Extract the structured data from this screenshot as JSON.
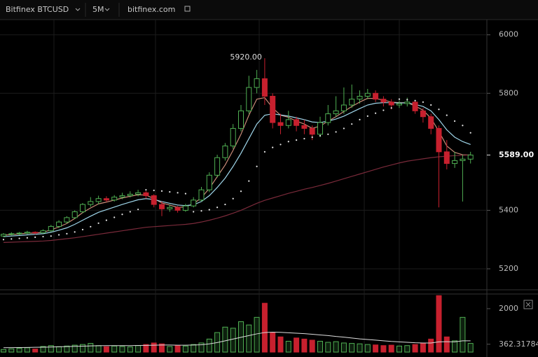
{
  "chart_data": {
    "type": "candlestick",
    "toolbar": {
      "symbol": "Bitfinex BTCUSD",
      "interval": "5M",
      "site": "bitfinex.com"
    },
    "annotation": {
      "value": 5920,
      "label": "5920.00"
    },
    "last_price": {
      "value": 5589,
      "label": "5589.00"
    },
    "ylim": [
      5133,
      6052
    ],
    "yticks": [
      5200,
      5400,
      5800,
      6000
    ],
    "up_color": "#4fae52",
    "down_color": "#c7202e",
    "candles": [
      [
        5312,
        5322,
        5308,
        5318
      ],
      [
        5318,
        5325,
        5314,
        5320
      ],
      [
        5320,
        5326,
        5315,
        5322
      ],
      [
        5322,
        5330,
        5318,
        5325
      ],
      [
        5325,
        5328,
        5318,
        5323
      ],
      [
        5323,
        5335,
        5320,
        5330
      ],
      [
        5330,
        5350,
        5326,
        5345
      ],
      [
        5345,
        5366,
        5340,
        5360
      ],
      [
        5360,
        5380,
        5355,
        5375
      ],
      [
        5375,
        5400,
        5370,
        5395
      ],
      [
        5395,
        5425,
        5390,
        5420
      ],
      [
        5420,
        5445,
        5412,
        5430
      ],
      [
        5430,
        5450,
        5420,
        5440
      ],
      [
        5440,
        5448,
        5428,
        5435
      ],
      [
        5435,
        5452,
        5430,
        5445
      ],
      [
        5445,
        5460,
        5438,
        5450
      ],
      [
        5450,
        5465,
        5444,
        5455
      ],
      [
        5455,
        5470,
        5448,
        5460
      ],
      [
        5460,
        5466,
        5440,
        5450
      ],
      [
        5450,
        5455,
        5410,
        5420
      ],
      [
        5420,
        5430,
        5380,
        5405
      ],
      [
        5405,
        5420,
        5395,
        5410
      ],
      [
        5410,
        5415,
        5392,
        5400
      ],
      [
        5400,
        5422,
        5395,
        5415
      ],
      [
        5415,
        5445,
        5410,
        5435
      ],
      [
        5435,
        5480,
        5430,
        5470
      ],
      [
        5470,
        5530,
        5462,
        5520
      ],
      [
        5520,
        5590,
        5512,
        5580
      ],
      [
        5580,
        5630,
        5570,
        5620
      ],
      [
        5620,
        5695,
        5610,
        5680
      ],
      [
        5680,
        5760,
        5670,
        5740
      ],
      [
        5740,
        5860,
        5730,
        5820
      ],
      [
        5820,
        5880,
        5800,
        5850
      ],
      [
        5850,
        5920,
        5760,
        5790
      ],
      [
        5790,
        5800,
        5680,
        5700
      ],
      [
        5700,
        5730,
        5660,
        5690
      ],
      [
        5690,
        5740,
        5680,
        5710
      ],
      [
        5710,
        5720,
        5670,
        5690
      ],
      [
        5690,
        5710,
        5660,
        5680
      ],
      [
        5680,
        5690,
        5640,
        5660
      ],
      [
        5660,
        5720,
        5650,
        5700
      ],
      [
        5700,
        5760,
        5690,
        5730
      ],
      [
        5730,
        5790,
        5720,
        5740
      ],
      [
        5740,
        5820,
        5730,
        5760
      ],
      [
        5760,
        5830,
        5750,
        5780
      ],
      [
        5780,
        5810,
        5765,
        5790
      ],
      [
        5790,
        5815,
        5780,
        5800
      ],
      [
        5800,
        5810,
        5770,
        5780
      ],
      [
        5780,
        5790,
        5755,
        5770
      ],
      [
        5770,
        5780,
        5745,
        5760
      ],
      [
        5760,
        5775,
        5750,
        5765
      ],
      [
        5765,
        5785,
        5755,
        5770
      ],
      [
        5770,
        5775,
        5730,
        5740
      ],
      [
        5740,
        5750,
        5700,
        5720
      ],
      [
        5720,
        5730,
        5660,
        5680
      ],
      [
        5680,
        5690,
        5410,
        5600
      ],
      [
        5600,
        5640,
        5540,
        5560
      ],
      [
        5560,
        5600,
        5545,
        5570
      ],
      [
        5570,
        5590,
        5430,
        5575
      ],
      [
        5575,
        5600,
        5560,
        5589
      ]
    ],
    "lines": [
      {
        "color": "#c98b78",
        "values": [
          5315,
          5317,
          5319,
          5322,
          5322,
          5325,
          5333,
          5343,
          5355,
          5372,
          5392,
          5408,
          5422,
          5428,
          5435,
          5442,
          5448,
          5453,
          5452,
          5440,
          5425,
          5418,
          5410,
          5412,
          5422,
          5443,
          5475,
          5515,
          5555,
          5605,
          5660,
          5725,
          5780,
          5785,
          5750,
          5725,
          5718,
          5705,
          5695,
          5680,
          5688,
          5705,
          5720,
          5738,
          5755,
          5770,
          5783,
          5782,
          5777,
          5770,
          5768,
          5768,
          5757,
          5742,
          5715,
          5670,
          5620,
          5598,
          5590,
          5589
        ]
      },
      {
        "color": "#9fd6ea",
        "values": [
          5310,
          5312,
          5314,
          5316,
          5318,
          5320,
          5325,
          5332,
          5340,
          5352,
          5366,
          5380,
          5393,
          5402,
          5411,
          5420,
          5428,
          5436,
          5440,
          5437,
          5430,
          5424,
          5418,
          5416,
          5419,
          5430,
          5450,
          5478,
          5510,
          5550,
          5595,
          5645,
          5695,
          5725,
          5730,
          5726,
          5722,
          5716,
          5710,
          5702,
          5700,
          5705,
          5712,
          5722,
          5735,
          5748,
          5760,
          5766,
          5768,
          5768,
          5767,
          5767,
          5762,
          5755,
          5740,
          5710,
          5675,
          5650,
          5635,
          5625
        ]
      },
      {
        "color": "#7a2a3a",
        "values": [
          5290,
          5291,
          5292,
          5293,
          5294,
          5295,
          5297,
          5300,
          5303,
          5306,
          5310,
          5314,
          5318,
          5322,
          5326,
          5330,
          5334,
          5338,
          5342,
          5344,
          5346,
          5348,
          5350,
          5352,
          5355,
          5360,
          5366,
          5373,
          5381,
          5390,
          5400,
          5412,
          5424,
          5434,
          5442,
          5450,
          5458,
          5465,
          5472,
          5478,
          5485,
          5492,
          5500,
          5508,
          5516,
          5524,
          5532,
          5540,
          5548,
          5555,
          5562,
          5568,
          5572,
          5576,
          5580,
          5583,
          5585,
          5587,
          5588,
          5589
        ]
      }
    ],
    "sar": {
      "color": "#e8e8e8",
      "values": [
        5300,
        5302,
        5304,
        5306,
        5308,
        5310,
        5312,
        5316,
        5320,
        5326,
        5334,
        5344,
        5356,
        5366,
        5376,
        5386,
        5395,
        5403,
        5470,
        5468,
        5466,
        5463,
        5460,
        5457,
        5395,
        5398,
        5402,
        5410,
        5420,
        5440,
        5465,
        5500,
        5550,
        5600,
        5615,
        5625,
        5635,
        5640,
        5645,
        5650,
        5655,
        5660,
        5668,
        5680,
        5695,
        5710,
        5722,
        5732,
        5742,
        5750,
        5780,
        5778,
        5775,
        5770,
        5760,
        5745,
        5725,
        5705,
        5690,
        5665
      ]
    },
    "volume": {
      "ylim": [
        0,
        2610
      ],
      "yticks": [
        2000,
        362.31784
      ],
      "values": [
        120,
        150,
        180,
        200,
        140,
        260,
        300,
        250,
        280,
        320,
        350,
        400,
        300,
        250,
        280,
        260,
        240,
        300,
        350,
        420,
        380,
        260,
        300,
        280,
        350,
        420,
        600,
        900,
        1150,
        1100,
        1400,
        1250,
        1600,
        2250,
        900,
        700,
        500,
        650,
        600,
        550,
        500,
        450,
        480,
        420,
        400,
        380,
        350,
        330,
        300,
        320,
        280,
        300,
        350,
        420,
        600,
        2600,
        700,
        520,
        1600,
        400
      ],
      "ma_color": "#dddddd",
      "ma": [
        200,
        205,
        210,
        215,
        220,
        225,
        235,
        245,
        255,
        265,
        275,
        285,
        295,
        300,
        300,
        300,
        300,
        305,
        310,
        320,
        325,
        325,
        320,
        320,
        325,
        340,
        380,
        440,
        520,
        600,
        680,
        760,
        840,
        900,
        920,
        910,
        890,
        870,
        850,
        820,
        790,
        760,
        720,
        690,
        650,
        610,
        580,
        550,
        520,
        490,
        470,
        450,
        430,
        420,
        420,
        470,
        480,
        470,
        520,
        520
      ]
    }
  }
}
